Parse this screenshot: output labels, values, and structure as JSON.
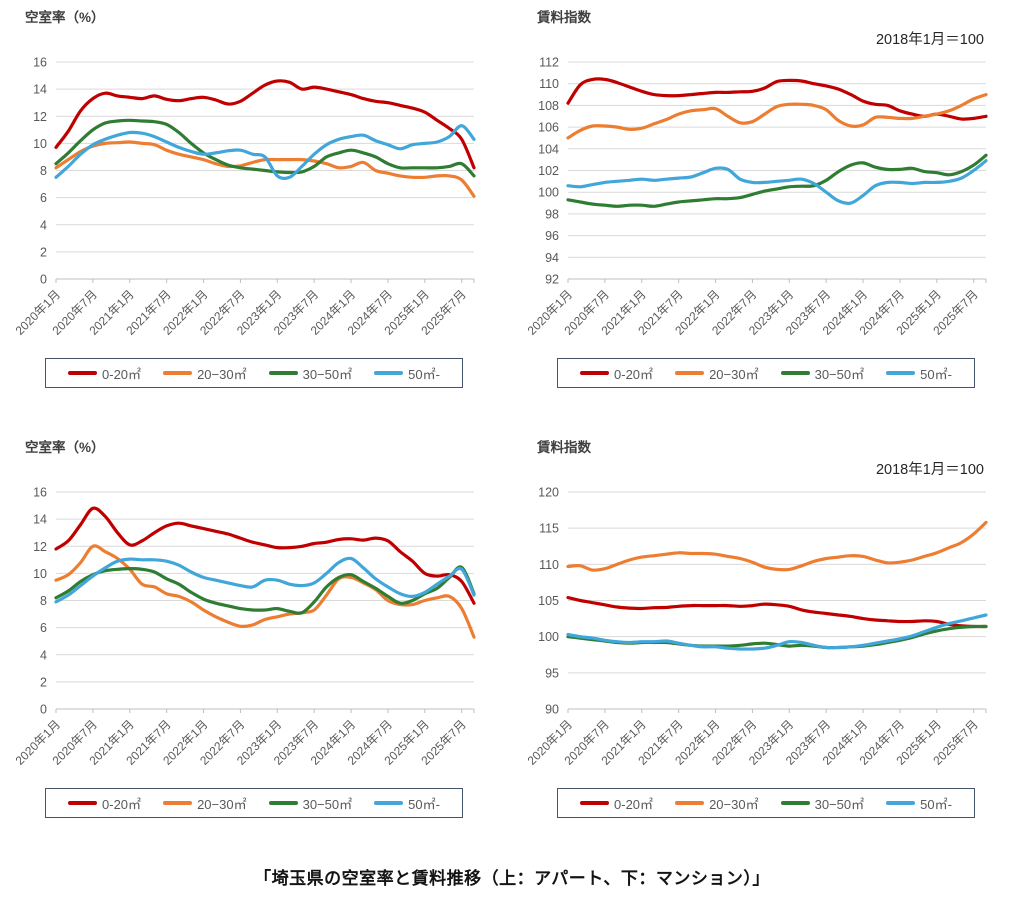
{
  "page": {
    "caption": "「埼玉県の空室率と賃料推移（上：アパート、下：マンション）」"
  },
  "colors": {
    "series_red": "#c00000",
    "series_orange": "#ed7d31",
    "series_green": "#2e7d32",
    "series_blue": "#41a6d9",
    "gridline": "#d9d9d9",
    "axis": "#bfbfbf",
    "tick_text": "#595959",
    "legend_border": "#44546a"
  },
  "chart_data": [
    {
      "type": "line",
      "title": "空室率（%）",
      "ylim": [
        0,
        16
      ],
      "y_step": 2,
      "y_tick_labels": [
        "0",
        "2",
        "4",
        "6",
        "8",
        "10",
        "12",
        "14",
        "16"
      ],
      "x_tick_labels": [
        "2020年1月",
        "2020年7月",
        "2021年1月",
        "2021年7月",
        "2022年1月",
        "2022年7月",
        "2023年1月",
        "2023年7月",
        "2024年1月",
        "2024年7月",
        "2025年1月",
        "2025年7月"
      ],
      "x_start_label": "2020年1月",
      "x_step_months": 2,
      "grid": true,
      "legend_position": "bottom",
      "series": [
        {
          "name": "0-20㎡",
          "color": "#c00000",
          "values": [
            9.7,
            10.9,
            12.4,
            13.3,
            13.7,
            13.5,
            13.4,
            13.3,
            13.5,
            13.25,
            13.15,
            13.3,
            13.4,
            13.2,
            12.9,
            13.1,
            13.7,
            14.3,
            14.6,
            14.5,
            14.0,
            14.15,
            14.0,
            13.8,
            13.6,
            13.3,
            13.1,
            13.0,
            12.8,
            12.6,
            12.3,
            11.7,
            11.1,
            10.3,
            8.2
          ]
        },
        {
          "name": "20−30㎡",
          "color": "#ed7d31",
          "values": [
            8.2,
            8.8,
            9.4,
            9.8,
            10.0,
            10.05,
            10.1,
            10.0,
            9.9,
            9.5,
            9.2,
            9.0,
            8.8,
            8.5,
            8.3,
            8.35,
            8.6,
            8.8,
            8.8,
            8.8,
            8.8,
            8.7,
            8.5,
            8.2,
            8.3,
            8.6,
            8.0,
            7.8,
            7.6,
            7.5,
            7.5,
            7.6,
            7.6,
            7.3,
            6.1
          ]
        },
        {
          "name": "30−50㎡",
          "color": "#2e7d32",
          "values": [
            8.5,
            9.3,
            10.2,
            11.0,
            11.5,
            11.65,
            11.7,
            11.65,
            11.6,
            11.4,
            10.8,
            10.0,
            9.3,
            8.8,
            8.4,
            8.2,
            8.1,
            8.0,
            7.9,
            7.85,
            7.9,
            8.3,
            9.0,
            9.3,
            9.5,
            9.3,
            9.0,
            8.5,
            8.2,
            8.2,
            8.2,
            8.2,
            8.3,
            8.5,
            7.6
          ]
        },
        {
          "name": "50㎡-",
          "color": "#41a6d9",
          "values": [
            7.5,
            8.3,
            9.2,
            9.9,
            10.3,
            10.6,
            10.8,
            10.75,
            10.5,
            10.1,
            9.7,
            9.4,
            9.2,
            9.3,
            9.45,
            9.5,
            9.2,
            9.0,
            7.6,
            7.5,
            8.3,
            9.2,
            9.9,
            10.3,
            10.5,
            10.6,
            10.2,
            9.9,
            9.6,
            9.9,
            10.0,
            10.1,
            10.5,
            11.3,
            10.3
          ]
        }
      ]
    },
    {
      "type": "line",
      "title": "賃料指数",
      "subtitle": "2018年1月＝100",
      "ylim": [
        92,
        112
      ],
      "y_step": 2,
      "y_tick_labels": [
        "92",
        "94",
        "96",
        "98",
        "100",
        "102",
        "104",
        "106",
        "108",
        "110",
        "112"
      ],
      "x_tick_labels": [
        "2020年1月",
        "2020年7月",
        "2021年1月",
        "2021年7月",
        "2022年1月",
        "2022年7月",
        "2023年1月",
        "2023年7月",
        "2024年1月",
        "2024年7月",
        "2025年1月",
        "2025年7月"
      ],
      "x_start_label": "2020年1月",
      "x_step_months": 2,
      "grid": true,
      "legend_position": "bottom",
      "series": [
        {
          "name": "0-20㎡",
          "color": "#c00000",
          "values": [
            108.2,
            109.9,
            110.4,
            110.4,
            110.1,
            109.7,
            109.3,
            109.0,
            108.9,
            108.9,
            109.0,
            109.1,
            109.2,
            109.2,
            109.25,
            109.3,
            109.6,
            110.2,
            110.3,
            110.25,
            110.0,
            109.8,
            109.5,
            109.0,
            108.4,
            108.1,
            108.0,
            107.5,
            107.2,
            107.0,
            107.2,
            107.0,
            106.75,
            106.8,
            107.0
          ]
        },
        {
          "name": "20−30㎡",
          "color": "#ed7d31",
          "values": [
            105.0,
            105.7,
            106.1,
            106.1,
            106.0,
            105.8,
            105.9,
            106.3,
            106.7,
            107.2,
            107.5,
            107.6,
            107.7,
            107.0,
            106.4,
            106.5,
            107.2,
            107.9,
            108.1,
            108.1,
            108.0,
            107.6,
            106.6,
            106.1,
            106.2,
            106.9,
            106.9,
            106.8,
            106.8,
            107.0,
            107.2,
            107.5,
            108.0,
            108.6,
            109.0
          ]
        },
        {
          "name": "30−50㎡",
          "color": "#2e7d32",
          "values": [
            99.3,
            99.1,
            98.9,
            98.8,
            98.7,
            98.8,
            98.8,
            98.7,
            98.9,
            99.1,
            99.2,
            99.3,
            99.4,
            99.4,
            99.5,
            99.8,
            100.1,
            100.3,
            100.5,
            100.55,
            100.6,
            101.1,
            101.9,
            102.5,
            102.7,
            102.3,
            102.1,
            102.1,
            102.2,
            101.9,
            101.8,
            101.6,
            101.9,
            102.5,
            103.4
          ]
        },
        {
          "name": "50㎡-",
          "color": "#41a6d9",
          "values": [
            100.6,
            100.5,
            100.7,
            100.9,
            101.0,
            101.1,
            101.2,
            101.1,
            101.2,
            101.3,
            101.4,
            101.8,
            102.2,
            102.1,
            101.2,
            100.9,
            100.9,
            101.0,
            101.1,
            101.2,
            100.8,
            100.0,
            99.2,
            99.0,
            99.7,
            100.6,
            100.9,
            100.9,
            100.8,
            100.9,
            100.9,
            101.0,
            101.3,
            102.0,
            102.9
          ]
        }
      ]
    },
    {
      "type": "line",
      "title": "空室率（%）",
      "ylim": [
        0,
        16
      ],
      "y_step": 2,
      "y_tick_labels": [
        "0",
        "2",
        "4",
        "6",
        "8",
        "10",
        "12",
        "14",
        "16"
      ],
      "x_tick_labels": [
        "2020年1月",
        "2020年7月",
        "2021年1月",
        "2021年7月",
        "2022年1月",
        "2022年7月",
        "2023年1月",
        "2023年7月",
        "2024年1月",
        "2024年7月",
        "2025年1月",
        "2025年7月"
      ],
      "x_start_label": "2020年1月",
      "x_step_months": 2,
      "grid": true,
      "legend_position": "bottom",
      "series": [
        {
          "name": "0-20㎡",
          "color": "#c00000",
          "values": [
            11.8,
            12.4,
            13.6,
            14.8,
            14.2,
            13.0,
            12.1,
            12.4,
            13.0,
            13.5,
            13.7,
            13.5,
            13.3,
            13.1,
            12.9,
            12.6,
            12.3,
            12.1,
            11.9,
            11.9,
            12.0,
            12.2,
            12.3,
            12.5,
            12.55,
            12.45,
            12.6,
            12.4,
            11.6,
            10.9,
            10.0,
            9.8,
            9.9,
            9.4,
            7.8
          ]
        },
        {
          "name": "20−30㎡",
          "color": "#ed7d31",
          "values": [
            9.5,
            9.9,
            10.8,
            12.0,
            11.6,
            11.1,
            10.3,
            9.2,
            9.0,
            8.5,
            8.3,
            7.9,
            7.3,
            6.8,
            6.4,
            6.1,
            6.2,
            6.6,
            6.8,
            7.0,
            7.1,
            7.3,
            8.4,
            9.6,
            9.7,
            9.3,
            8.8,
            8.0,
            7.7,
            7.7,
            8.0,
            8.2,
            8.3,
            7.4,
            5.3
          ]
        },
        {
          "name": "30−50㎡",
          "color": "#2e7d32",
          "values": [
            8.2,
            8.7,
            9.4,
            9.9,
            10.2,
            10.3,
            10.35,
            10.3,
            10.1,
            9.6,
            9.2,
            8.6,
            8.1,
            7.8,
            7.6,
            7.4,
            7.3,
            7.3,
            7.4,
            7.2,
            7.1,
            7.9,
            9.0,
            9.7,
            9.9,
            9.4,
            8.9,
            8.3,
            7.8,
            8.0,
            8.5,
            8.9,
            9.7,
            10.45,
            8.5
          ]
        },
        {
          "name": "50㎡-",
          "color": "#41a6d9",
          "values": [
            7.9,
            8.4,
            9.1,
            9.8,
            10.4,
            10.9,
            11.05,
            11.0,
            11.0,
            10.9,
            10.6,
            10.1,
            9.7,
            9.5,
            9.3,
            9.1,
            9.0,
            9.5,
            9.5,
            9.2,
            9.1,
            9.3,
            10.0,
            10.8,
            11.1,
            10.4,
            9.6,
            9.0,
            8.5,
            8.3,
            8.6,
            9.2,
            9.8,
            10.3,
            8.4
          ]
        }
      ]
    },
    {
      "type": "line",
      "title": "賃料指数",
      "subtitle": "2018年1月＝100",
      "ylim": [
        90,
        120
      ],
      "y_step": 5,
      "y_tick_labels": [
        "90",
        "95",
        "100",
        "105",
        "110",
        "115",
        "120"
      ],
      "x_tick_labels": [
        "2020年1月",
        "2020年7月",
        "2021年1月",
        "2021年7月",
        "2022年1月",
        "2022年7月",
        "2023年1月",
        "2023年7月",
        "2024年1月",
        "2024年7月",
        "2025年1月",
        "2025年7月"
      ],
      "x_start_label": "2020年1月",
      "x_step_months": 2,
      "grid": true,
      "legend_position": "bottom",
      "series": [
        {
          "name": "0-20㎡",
          "color": "#c00000",
          "values": [
            105.4,
            105.0,
            104.7,
            104.4,
            104.1,
            103.95,
            103.9,
            104.0,
            104.05,
            104.2,
            104.3,
            104.3,
            104.3,
            104.3,
            104.2,
            104.3,
            104.5,
            104.4,
            104.2,
            103.7,
            103.4,
            103.2,
            103.0,
            102.8,
            102.5,
            102.3,
            102.2,
            102.1,
            102.1,
            102.2,
            102.1,
            101.7,
            101.5,
            101.4,
            101.4
          ]
        },
        {
          "name": "20−30㎡",
          "color": "#ed7d31",
          "values": [
            109.7,
            109.8,
            109.2,
            109.4,
            110.0,
            110.6,
            111.0,
            111.2,
            111.4,
            111.6,
            111.5,
            111.5,
            111.4,
            111.1,
            110.8,
            110.3,
            109.6,
            109.3,
            109.3,
            109.8,
            110.4,
            110.8,
            111.0,
            111.2,
            111.1,
            110.6,
            110.2,
            110.3,
            110.6,
            111.1,
            111.6,
            112.3,
            113.0,
            114.2,
            115.8
          ]
        },
        {
          "name": "30−50㎡",
          "color": "#2e7d32",
          "values": [
            100.0,
            99.8,
            99.6,
            99.4,
            99.2,
            99.1,
            99.2,
            99.2,
            99.2,
            99.0,
            98.8,
            98.7,
            98.7,
            98.7,
            98.8,
            99.0,
            99.1,
            98.9,
            98.7,
            98.8,
            98.7,
            98.5,
            98.5,
            98.6,
            98.7,
            98.9,
            99.2,
            99.5,
            99.9,
            100.4,
            100.8,
            101.1,
            101.3,
            101.4,
            101.4
          ]
        },
        {
          "name": "50㎡-",
          "color": "#41a6d9",
          "values": [
            100.3,
            100.0,
            99.8,
            99.5,
            99.3,
            99.2,
            99.3,
            99.3,
            99.4,
            99.1,
            98.8,
            98.6,
            98.6,
            98.4,
            98.3,
            98.3,
            98.4,
            98.8,
            99.3,
            99.2,
            98.8,
            98.5,
            98.5,
            98.6,
            98.8,
            99.1,
            99.4,
            99.7,
            100.1,
            100.7,
            101.3,
            101.8,
            102.2,
            102.6,
            103.0
          ]
        }
      ]
    }
  ]
}
